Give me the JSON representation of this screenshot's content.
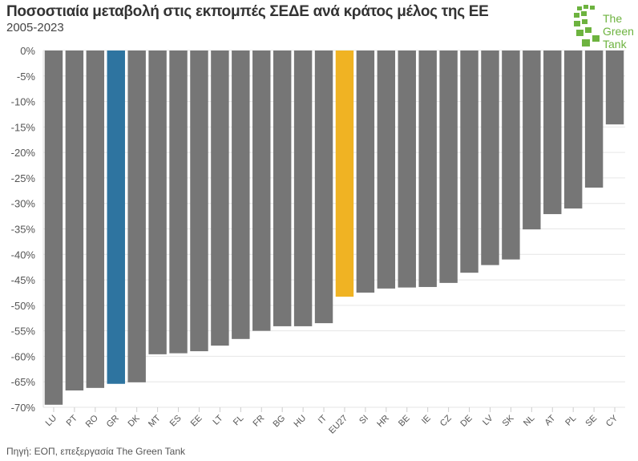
{
  "chart_data": {
    "type": "bar",
    "title": "Ποσοστιαία μεταβολή στις εκπομπές ΣΕΔΕ ανά κράτος μέλος της ΕΕ",
    "subtitle": "2005-2023",
    "xlabel": "",
    "ylabel": "",
    "ylim": [
      -70,
      0
    ],
    "yticks": [
      "0%",
      "-5%",
      "-10%",
      "-15%",
      "-20%",
      "-25%",
      "-30%",
      "-35%",
      "-40%",
      "-45%",
      "-50%",
      "-55%",
      "-60%",
      "-65%",
      "-70%"
    ],
    "grid": true,
    "categories": [
      "LU",
      "PT",
      "RO",
      "GR",
      "DK",
      "MT",
      "ES",
      "EE",
      "LT",
      "FL",
      "FR",
      "BG",
      "HU",
      "IT",
      "EU27",
      "SI",
      "HR",
      "BE",
      "IE",
      "CZ",
      "DE",
      "LV",
      "SK",
      "NL",
      "AT",
      "PL",
      "SE",
      "CY"
    ],
    "values": [
      -69.5,
      -66.7,
      -66.2,
      -65.4,
      -65.1,
      -59.6,
      -59.4,
      -59.0,
      -57.9,
      -56.6,
      -55.0,
      -54.1,
      -54.1,
      -53.5,
      -48.3,
      -47.5,
      -46.7,
      -46.5,
      -46.4,
      -45.6,
      -43.6,
      -42.1,
      -41.0,
      -35.1,
      -32.1,
      -31.0,
      -26.9,
      -14.5
    ],
    "colors": {
      "default": "#767676",
      "highlight_GR": "#2e74a0",
      "highlight_EU27": "#f0b323"
    }
  },
  "source": "Πηγή: ΕΟΠ, επεξεργασία The Green Tank",
  "logo": {
    "text": "The Green Tank",
    "color": "#6db33f"
  }
}
